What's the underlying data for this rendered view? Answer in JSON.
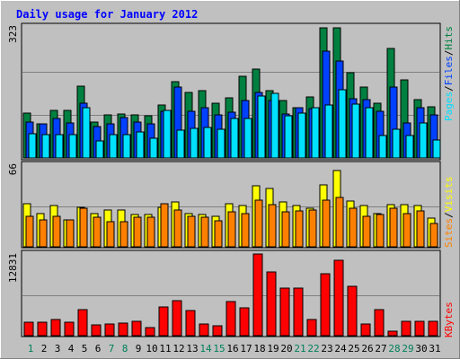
{
  "chart_data": {
    "type": "bar",
    "title": "Daily usage for January 2012",
    "categories": [
      "1",
      "2",
      "3",
      "4",
      "5",
      "6",
      "7",
      "8",
      "9",
      "10",
      "11",
      "12",
      "13",
      "14",
      "15",
      "16",
      "17",
      "18",
      "19",
      "20",
      "21",
      "22",
      "23",
      "24",
      "25",
      "26",
      "27",
      "28",
      "29",
      "30",
      "31"
    ],
    "weekend_days": [
      "1",
      "7",
      "8",
      "14",
      "15",
      "21",
      "22",
      "28",
      "29"
    ],
    "panels": [
      {
        "name": "hits_files_pages",
        "ymax_label": "323",
        "ylim": [
          0,
          323
        ],
        "legend": [
          "Pages",
          "Files",
          "Hits"
        ],
        "series": [
          {
            "name": "Hits",
            "color": "#008040",
            "values": [
              111,
              84,
              118,
              118,
              176,
              89,
              106,
              108,
              106,
              104,
              130,
              187,
              161,
              165,
              135,
              149,
              202,
              220,
              167,
              142,
              124,
              151,
              320,
              320,
              211,
              175,
              136,
              269,
              192,
              144,
              126
            ]
          },
          {
            "name": "Files",
            "color": "#0040ff",
            "values": [
              88,
              84,
              98,
              87,
              134,
              78,
              84,
              99,
              89,
              84,
              116,
              174,
              114,
              124,
              106,
              113,
              142,
              162,
              142,
              108,
              124,
              121,
              263,
              238,
              147,
              144,
              116,
              175,
              87,
              123,
              107
            ]
          },
          {
            "name": "Pages",
            "color": "#00e0ff",
            "values": [
              60,
              58,
              58,
              58,
              124,
              43,
              58,
              58,
              65,
              48,
              118,
              69,
              74,
              76,
              70,
              97,
              97,
              152,
              160,
              104,
              111,
              124,
              130,
              169,
              132,
              124,
              55,
              70,
              55,
              86,
              45
            ]
          }
        ]
      },
      {
        "name": "visits_sites",
        "ymax_label": "66",
        "ylim": [
          0,
          66
        ],
        "legend": [
          "Sites",
          "Visits"
        ],
        "series": [
          {
            "name": "Visits",
            "color": "#ffff00",
            "values": [
              35,
              27,
              33,
              22,
              32,
              27,
              30,
              30,
              26,
              26,
              32,
              36,
              27,
              26,
              25,
              35,
              33,
              49,
              47,
              36,
              33,
              31,
              50,
              62,
              37,
              33,
              27,
              34,
              34,
              33,
              23
            ]
          },
          {
            "name": "Sites",
            "color": "#ff8000",
            "values": [
              25,
              22,
              25,
              22,
              31,
              24,
              20,
              20,
              24,
              24,
              35,
              30,
              25,
              24,
              21,
              28,
              27,
              38,
              34,
              28,
              29,
              30,
              38,
              40,
              31,
              25,
              26,
              31,
              27,
              29,
              19
            ]
          }
        ]
      },
      {
        "name": "kbytes",
        "ymax_label": "12831",
        "ylim": [
          0,
          12831
        ],
        "legend": [
          "KBytes"
        ],
        "series": [
          {
            "name": "KBytes",
            "color": "#ff0000",
            "values": [
              2080,
              2080,
              2510,
              2160,
              4100,
              1670,
              1820,
              2010,
              2240,
              1310,
              4580,
              5520,
              3980,
              1850,
              1550,
              5300,
              4400,
              12831,
              10000,
              7490,
              7490,
              2490,
              9710,
              11900,
              7790,
              1780,
              4100,
              690,
              2240,
              2240,
              2280
            ]
          }
        ]
      }
    ]
  }
}
